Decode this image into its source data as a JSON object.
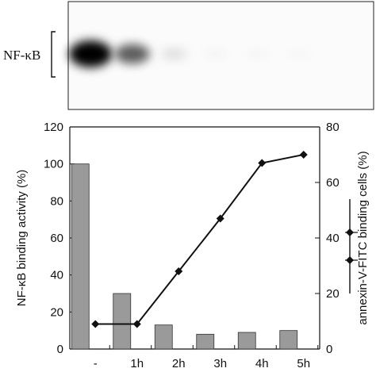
{
  "blot": {
    "label": "NF-κB",
    "band_intensities": [
      1.0,
      0.62,
      0.2,
      0.08,
      0.07,
      0.06
    ]
  },
  "chart_data": {
    "type": "bar",
    "categories": [
      "-",
      "1h",
      "2h",
      "3h",
      "4h",
      "5h"
    ],
    "ylabel": "NF-κB binding activity (%)",
    "ylabel_right": "annexin-V-FITC binding cells (%)",
    "ylim": [
      0,
      120
    ],
    "yticks": [
      0,
      20,
      40,
      60,
      80,
      100,
      120
    ],
    "ylim_right": [
      0,
      80
    ],
    "yticks_right": [
      0,
      20,
      40,
      60,
      80
    ],
    "series": [
      {
        "type": "bar",
        "axis": "left",
        "values": [
          100,
          30,
          13,
          8,
          9,
          10
        ],
        "color": "#9a9a9a"
      },
      {
        "type": "line",
        "axis": "right",
        "values": [
          9,
          9,
          28,
          47,
          67,
          70
        ],
        "color": "#111111",
        "marker": "diamond"
      }
    ],
    "legend": {
      "placement": "right",
      "entries": [
        {
          "marker": "diamond-line",
          "y_right_value": 42
        },
        {
          "marker": "diamond-line",
          "y_right_value": 32
        }
      ]
    }
  }
}
